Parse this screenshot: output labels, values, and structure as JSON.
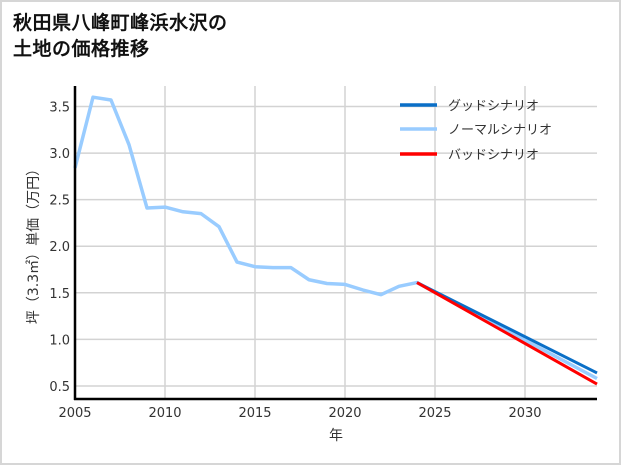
{
  "title_line1": "秋田県八峰町峰浜水沢の",
  "title_line2": "土地の価格推移",
  "colors": {
    "good": "#0a6fc7",
    "normal": "#99ccff",
    "bad": "#ff0000",
    "grid": "#d3d3d3",
    "axis": "#000000"
  },
  "chart_data": {
    "type": "line",
    "title": "秋田県八峰町峰浜水沢の土地の価格推移",
    "xlabel": "年",
    "ylabel": "坪（3.3㎡）単価（万円）",
    "xlim": [
      2005,
      2034
    ],
    "ylim": [
      0.36,
      3.72
    ],
    "xticks": [
      2005,
      2010,
      2015,
      2020,
      2025,
      2030
    ],
    "yticks": [
      0.5,
      1.0,
      1.5,
      2.0,
      2.5,
      3.0,
      3.5
    ],
    "xtick_labels": [
      "2005",
      "2010",
      "2015",
      "2020",
      "2025",
      "2030"
    ],
    "ytick_labels": [
      "0.5",
      "1.0",
      "1.5",
      "2.0",
      "2.5",
      "3.0",
      "3.5"
    ],
    "grid": true,
    "legend_position": "upper right",
    "series": [
      {
        "name": "グッドシナリオ",
        "color": "#0a6fc7",
        "x": [
          2024,
          2034
        ],
        "values": [
          1.61,
          0.64
        ]
      },
      {
        "name": "ノーマルシナリオ",
        "color": "#99ccff",
        "x": [
          2005,
          2006,
          2007,
          2008,
          2009,
          2010,
          2011,
          2012,
          2013,
          2014,
          2015,
          2016,
          2017,
          2018,
          2019,
          2020,
          2021,
          2022,
          2023,
          2024,
          2034
        ],
        "values": [
          2.84,
          3.6,
          3.57,
          3.09,
          2.41,
          2.42,
          2.37,
          2.35,
          2.21,
          1.83,
          1.78,
          1.77,
          1.77,
          1.64,
          1.6,
          1.59,
          1.53,
          1.48,
          1.57,
          1.61,
          0.58
        ]
      },
      {
        "name": "バッドシナリオ",
        "color": "#ff0000",
        "x": [
          2024,
          2034
        ],
        "values": [
          1.61,
          0.52
        ]
      }
    ]
  }
}
